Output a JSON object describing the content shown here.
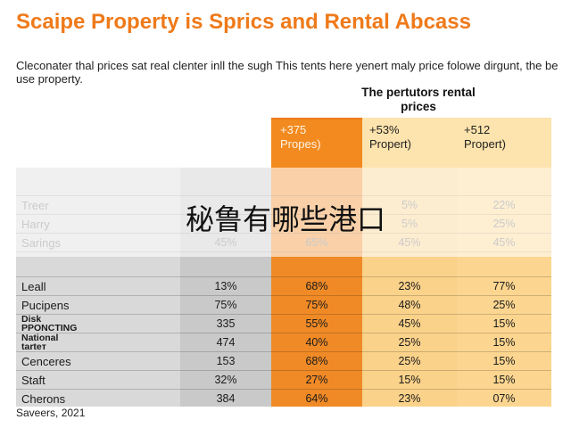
{
  "title": "Scaipe Property is Sprics and Rental Abcass",
  "subtitle": "Cleconater thal prices sat real clenter inll the sugh This tents here yenert maly price folowe dirgunt, the be use property.",
  "column_group_header": "The pertutors rental prices",
  "overlay_text": "秘鲁有哪些港口",
  "source": "Saveers, 2021",
  "chart_data": {
    "type": "table",
    "title": "Scaipe Property is Sprics and Rental Abcass",
    "columns": [
      "",
      "+375 Propes)",
      "+53% Propert)",
      "+512 Propert)"
    ],
    "rows": [
      {
        "label": "Treer",
        "values": [
          "",
          "",
          "5%",
          "22%"
        ]
      },
      {
        "label": "Harry",
        "values": [
          "",
          "",
          "5%",
          "25%"
        ]
      },
      {
        "label": "Sarings",
        "values": [
          "45%",
          "65%",
          "45%",
          "45%"
        ]
      },
      {
        "label": "",
        "values": [
          "",
          "",
          "",
          ""
        ]
      },
      {
        "label": "Leall",
        "values": [
          "13%",
          "68%",
          "23%",
          "77%"
        ]
      },
      {
        "label": "Pucipens",
        "values": [
          "75%",
          "75%",
          "48%",
          "25%"
        ]
      },
      {
        "label": "Disk PPONCTING",
        "values": [
          "335",
          "55%",
          "45%",
          "15%"
        ]
      },
      {
        "label": "National tarteт",
        "values": [
          "474",
          "40%",
          "25%",
          "15%"
        ]
      },
      {
        "label": "Cenceres",
        "values": [
          "153",
          "68%",
          "25%",
          "15%"
        ]
      },
      {
        "label": "Staft",
        "values": [
          "32%",
          "27%",
          "15%",
          "15%"
        ]
      },
      {
        "label": "Cherons",
        "values": [
          "384",
          "64%",
          "23%",
          "07%"
        ]
      }
    ]
  }
}
